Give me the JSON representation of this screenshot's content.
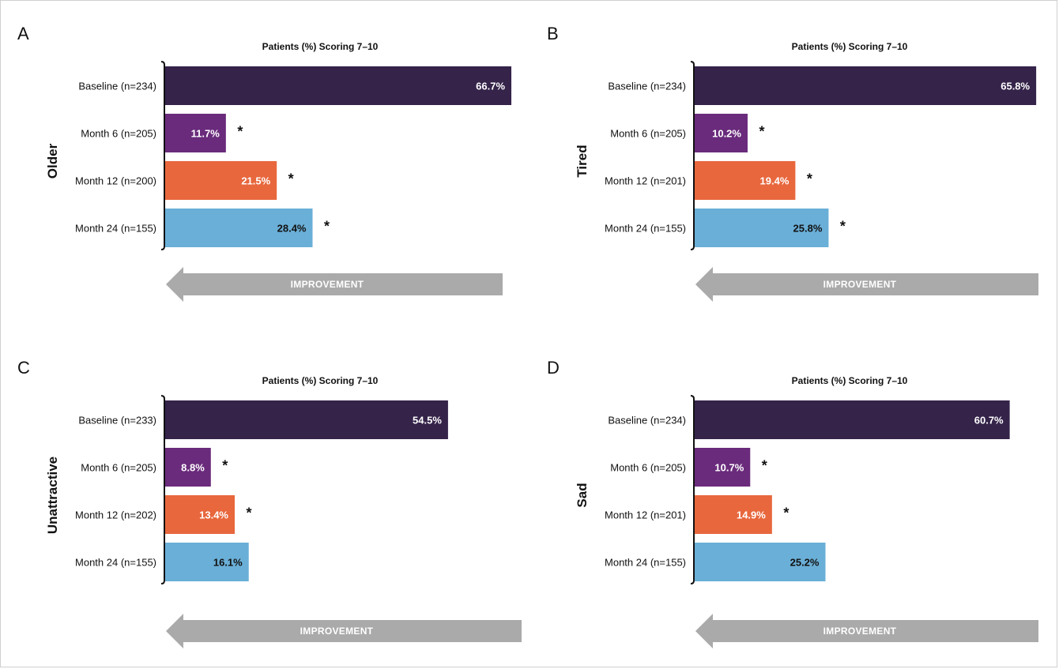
{
  "colors": {
    "baseline": "#35234a",
    "month6": "#6a2b7c",
    "month12": "#e8673d",
    "month24": "#6aafd7",
    "arrow": "#aaaaaa"
  },
  "chart_data": [
    {
      "type": "bar",
      "panel": "A",
      "title": "Patients (%) Scoring 7–10",
      "group_label": "Older",
      "categories": [
        "Baseline (n=234)",
        "Month 6 (n=205)",
        "Month 12 (n=200)",
        "Month 24 (n=155)"
      ],
      "values": [
        66.7,
        11.7,
        21.5,
        28.4
      ],
      "value_labels": [
        "66.7%",
        "11.7%",
        "21.5%",
        "28.4%"
      ],
      "significant": [
        false,
        true,
        true,
        true
      ],
      "arrow_label": "IMPROVEMENT",
      "xlim": [
        0,
        67
      ]
    },
    {
      "type": "bar",
      "panel": "B",
      "title": "Patients (%) Scoring 7–10",
      "group_label": "Tired",
      "categories": [
        "Baseline (n=234)",
        "Month 6 (n=205)",
        "Month 12 (n=201)",
        "Month 24 (n=155)"
      ],
      "values": [
        65.8,
        10.2,
        19.4,
        25.8
      ],
      "value_labels": [
        "65.8%",
        "10.2%",
        "19.4%",
        "25.8%"
      ],
      "significant": [
        false,
        true,
        true,
        true
      ],
      "arrow_label": "IMPROVEMENT",
      "xlim": [
        0,
        67
      ]
    },
    {
      "type": "bar",
      "panel": "C",
      "title": "Patients (%) Scoring 7–10",
      "group_label": "Unattractive",
      "categories": [
        "Baseline (n=233)",
        "Month 6 (n=205)",
        "Month 12 (n=202)",
        "Month 24 (n=155)"
      ],
      "values": [
        54.5,
        8.8,
        13.4,
        16.1
      ],
      "value_labels": [
        "54.5%",
        "8.8%",
        "13.4%",
        "16.1%"
      ],
      "significant": [
        false,
        true,
        true,
        false
      ],
      "arrow_label": "IMPROVEMENT",
      "xlim": [
        0,
        67
      ]
    },
    {
      "type": "bar",
      "panel": "D",
      "title": "Patients (%) Scoring 7–10",
      "group_label": "Sad",
      "categories": [
        "Baseline (n=234)",
        "Month 6 (n=205)",
        "Month 12 (n=201)",
        "Month 24 (n=155)"
      ],
      "values": [
        60.7,
        10.7,
        14.9,
        25.2
      ],
      "value_labels": [
        "60.7%",
        "10.7%",
        "14.9%",
        "25.2%"
      ],
      "significant": [
        false,
        true,
        true,
        false
      ],
      "arrow_label": "IMPROVEMENT",
      "xlim": [
        0,
        67
      ]
    }
  ],
  "star_symbol": "*"
}
